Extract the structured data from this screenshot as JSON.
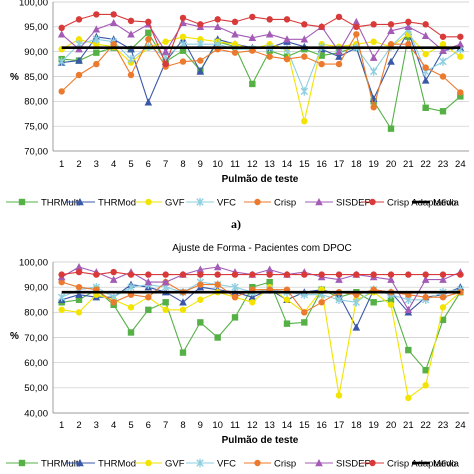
{
  "chart_data": [
    {
      "type": "line",
      "title": "",
      "sublabel": "a)",
      "xlabel": "Pulmão de teste",
      "ylabel": "%",
      "ylim": [
        70,
        100
      ],
      "ytick_labels": [
        "70,00",
        "75,00",
        "80,00",
        "85,00",
        "90,00",
        "95,00",
        "100,00"
      ],
      "yticks": [
        70,
        75,
        80,
        85,
        90,
        95,
        100
      ],
      "x": [
        1,
        2,
        3,
        4,
        5,
        6,
        7,
        8,
        9,
        10,
        11,
        12,
        13,
        14,
        15,
        16,
        17,
        18,
        19,
        20,
        21,
        22,
        23,
        24
      ],
      "grid": true,
      "legend_position": "bottom",
      "series": [
        {
          "name": "THRMulti",
          "color": "#55b146",
          "marker": "square",
          "values": [
            88.5,
            88.2,
            89.8,
            90.8,
            90.5,
            93.8,
            88.0,
            90.2,
            86.2,
            92.0,
            91.0,
            83.5,
            90.2,
            89.0,
            90.5,
            89.2,
            89.8,
            91.0,
            80.0,
            74.5,
            93.0,
            78.7,
            78.0,
            81.0
          ]
        },
        {
          "name": "THRMod",
          "color": "#3a58a8",
          "marker": "triangle",
          "values": [
            87.8,
            88.2,
            93.0,
            92.5,
            90.5,
            79.8,
            88.0,
            92.5,
            86.0,
            92.5,
            91.5,
            90.8,
            90.8,
            92.0,
            91.0,
            90.5,
            89.0,
            90.8,
            80.5,
            88.0,
            94.0,
            84.2,
            90.2,
            90.8
          ]
        },
        {
          "name": "GVF",
          "color": "#f2e300",
          "marker": "circle",
          "values": [
            90.5,
            92.5,
            91.5,
            91.0,
            87.8,
            90.8,
            92.0,
            93.0,
            92.5,
            92.0,
            91.5,
            90.5,
            91.5,
            90.5,
            76.0,
            91.5,
            91.0,
            91.5,
            92.0,
            91.0,
            93.5,
            89.5,
            91.5,
            89.0
          ]
        },
        {
          "name": "VFC",
          "color": "#8ecfe0",
          "marker": "star",
          "values": [
            88.0,
            91.5,
            92.5,
            92.0,
            88.5,
            91.0,
            89.0,
            91.5,
            91.5,
            91.5,
            90.5,
            90.5,
            90.8,
            90.5,
            82.0,
            91.0,
            90.5,
            90.8,
            86.0,
            91.0,
            94.5,
            86.0,
            88.0,
            90.5
          ]
        },
        {
          "name": "Crisp",
          "color": "#ec7a2e",
          "marker": "circle",
          "values": [
            82.0,
            85.3,
            87.5,
            91.5,
            85.3,
            92.5,
            87.0,
            88.0,
            88.2,
            90.5,
            89.8,
            90.2,
            89.0,
            88.5,
            89.0,
            87.5,
            87.5,
            93.5,
            78.8,
            91.5,
            91.5,
            86.8,
            85.0,
            81.8
          ]
        },
        {
          "name": "SISDEP",
          "color": "#a35bb5",
          "marker": "triangle",
          "values": [
            93.5,
            90.5,
            94.5,
            95.8,
            93.5,
            95.5,
            90.0,
            95.8,
            95.0,
            95.0,
            93.5,
            92.8,
            93.5,
            92.5,
            92.5,
            95.0,
            90.0,
            96.0,
            88.8,
            94.2,
            95.0,
            93.2,
            90.2,
            91.5
          ]
        },
        {
          "name": "Crisp Adaptativo",
          "color": "#d83a3a",
          "marker": "circle",
          "values": [
            94.8,
            96.5,
            97.5,
            97.5,
            96.2,
            96.0,
            87.5,
            96.8,
            95.5,
            96.5,
            96.0,
            97.0,
            96.5,
            96.5,
            95.5,
            95.0,
            97.0,
            95.0,
            95.5,
            95.5,
            96.0,
            95.5,
            93.0,
            93.0
          ]
        },
        {
          "name": "Média",
          "color": "#000000",
          "marker": "none",
          "values": [
            90.8,
            90.8,
            90.8,
            90.8,
            90.8,
            90.8,
            90.8,
            90.8,
            90.8,
            90.8,
            90.8,
            90.8,
            90.8,
            90.8,
            90.8,
            90.8,
            90.8,
            90.8,
            90.8,
            90.8,
            90.8,
            90.8,
            90.8,
            90.8
          ]
        }
      ]
    },
    {
      "type": "line",
      "title": "Ajuste de Forma - Pacientes com DPOC",
      "xlabel": "Pulmão de teste",
      "ylabel": "%",
      "ylim": [
        40,
        100
      ],
      "ytick_labels": [
        "40,00",
        "50,00",
        "60,00",
        "70,00",
        "80,00",
        "90,00",
        "100,00"
      ],
      "yticks": [
        40,
        50,
        60,
        70,
        80,
        90,
        100
      ],
      "x": [
        1,
        2,
        3,
        4,
        5,
        6,
        7,
        8,
        9,
        10,
        11,
        12,
        13,
        14,
        15,
        16,
        17,
        18,
        19,
        20,
        21,
        22,
        23,
        24
      ],
      "grid": true,
      "legend_position": "bottom",
      "series": [
        {
          "name": "THRMulti",
          "color": "#55b146",
          "marker": "square",
          "values": [
            84,
            85,
            89,
            83,
            72,
            81,
            84,
            64,
            76,
            70,
            78,
            90,
            92,
            75.5,
            76,
            89,
            86,
            88,
            84,
            85,
            65,
            57,
            77,
            88
          ]
        },
        {
          "name": "THRMod",
          "color": "#3a58a8",
          "marker": "triangle",
          "values": [
            85,
            87,
            86,
            86,
            91,
            90,
            88,
            84,
            90,
            89,
            88,
            86,
            89,
            85,
            88,
            89,
            87,
            74,
            89,
            88,
            80,
            86,
            87,
            90
          ]
        },
        {
          "name": "GVF",
          "color": "#f2e300",
          "marker": "circle",
          "values": [
            81,
            80,
            87,
            85,
            82,
            86,
            81,
            81,
            85,
            88,
            86,
            84,
            90,
            85,
            80,
            89,
            47,
            85,
            88,
            83,
            46,
            51,
            82,
            88
          ]
        },
        {
          "name": "VFC",
          "color": "#8ecfe0",
          "marker": "star",
          "values": [
            86,
            89,
            90,
            86,
            90,
            91,
            90,
            88,
            92,
            91,
            90,
            88,
            89,
            88,
            87,
            87,
            85,
            84,
            89,
            87,
            85,
            85,
            88,
            89
          ]
        },
        {
          "name": "Crisp",
          "color": "#ec7a2e",
          "marker": "circle",
          "values": [
            92,
            90,
            89,
            84,
            87,
            86,
            92,
            88,
            91,
            91,
            86,
            89,
            89,
            89,
            80,
            84,
            88,
            87,
            89,
            88,
            87,
            86,
            86,
            88
          ]
        },
        {
          "name": "SISDEP",
          "color": "#a35bb5",
          "marker": "triangle",
          "values": [
            94,
            98,
            96,
            93,
            96,
            92,
            92,
            95,
            97,
            98,
            96,
            95,
            97,
            95,
            96,
            94,
            93,
            95,
            94,
            93,
            81,
            93,
            93,
            96
          ]
        },
        {
          "name": "Crisp Adaptativo",
          "color": "#d83a3a",
          "marker": "circle",
          "values": [
            95,
            96,
            95,
            96,
            95,
            95,
            95,
            95,
            95,
            95,
            95,
            95,
            95,
            95,
            95,
            95,
            95,
            95,
            95,
            95,
            95,
            95,
            95,
            95
          ]
        },
        {
          "name": "Média",
          "color": "#000000",
          "marker": "none",
          "values": [
            88,
            88,
            88,
            88,
            88,
            88,
            88,
            88,
            88,
            88,
            88,
            88,
            88,
            88,
            88,
            88,
            88,
            88,
            88,
            88,
            88,
            88,
            88,
            88
          ]
        }
      ]
    }
  ]
}
